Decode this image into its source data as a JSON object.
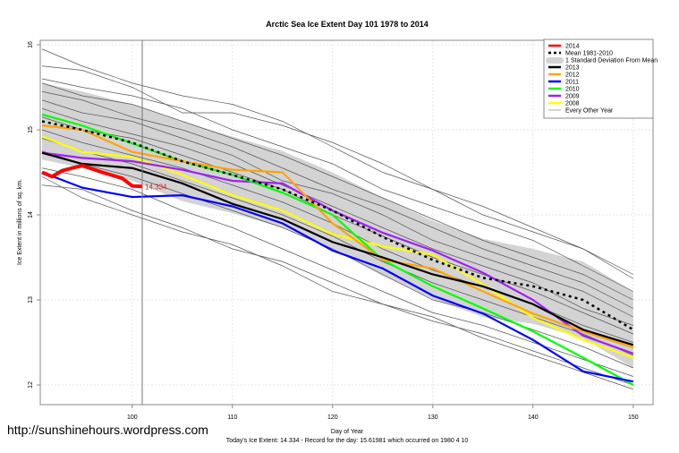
{
  "chart_data": {
    "type": "line",
    "title": "Arctic Sea Ice Extent Day 101 1978 to 2014",
    "xlabel": "Day of Year",
    "ylabel": "Ice Extent in millions of sq. km.",
    "xlim": [
      91,
      150
    ],
    "ylim": [
      11.9,
      16.05
    ],
    "xticks": [
      100,
      110,
      120,
      130,
      140,
      150
    ],
    "yticks": [
      12,
      13,
      14,
      15,
      16
    ],
    "grid": true,
    "legend_position": "top-right",
    "marker_day": 101,
    "today_label": "14.334",
    "footer": "Today's Ice Extent: 14.334  - Record for the day: 15.61981 which occurred on 1980 4 10",
    "x": [
      91,
      95,
      100,
      105,
      110,
      115,
      120,
      125,
      130,
      135,
      140,
      145,
      150
    ],
    "sd_band": {
      "name": "1 Standard Deviation From Mean",
      "color": "#d3d3d3",
      "upper": [
        15.55,
        15.45,
        15.3,
        15.1,
        14.92,
        14.75,
        14.5,
        14.2,
        13.93,
        13.72,
        13.6,
        13.45,
        13.1
      ],
      "lower": [
        14.65,
        14.55,
        14.4,
        14.16,
        14.02,
        13.85,
        13.6,
        13.28,
        13.01,
        12.8,
        12.72,
        12.55,
        12.2
      ]
    },
    "series": [
      {
        "name": "2014",
        "color": "#ff0000",
        "x": [
          91,
          92,
          93,
          95,
          97,
          99,
          100,
          101
        ],
        "values": [
          14.5,
          14.45,
          14.52,
          14.58,
          14.5,
          14.43,
          14.34,
          14.334
        ]
      },
      {
        "name": "Mean 1981-2010",
        "color": "#000000",
        "dashed": true,
        "values": [
          15.1,
          15.0,
          14.85,
          14.63,
          14.47,
          14.3,
          14.05,
          13.74,
          13.47,
          13.26,
          13.16,
          13.0,
          12.65
        ]
      },
      {
        "name": "2013",
        "color": "#000000",
        "values": [
          14.73,
          14.6,
          14.55,
          14.37,
          14.13,
          13.95,
          13.68,
          13.5,
          13.3,
          13.16,
          12.95,
          12.65,
          12.47
        ]
      },
      {
        "name": "2012",
        "color": "#ffa500",
        "values": [
          15.05,
          15.0,
          14.74,
          14.63,
          14.53,
          14.5,
          13.9,
          13.47,
          13.37,
          13.1,
          12.84,
          12.63,
          12.44
        ]
      },
      {
        "name": "2011",
        "color": "#0000ff",
        "values": [
          14.5,
          14.32,
          14.21,
          14.23,
          14.1,
          13.9,
          13.58,
          13.37,
          13.05,
          12.84,
          12.53,
          12.16,
          12.04
        ]
      },
      {
        "name": "2010",
        "color": "#00ff00",
        "values": [
          15.18,
          15.05,
          14.84,
          14.63,
          14.47,
          14.26,
          14.0,
          13.47,
          13.16,
          12.9,
          12.63,
          12.32,
          12.0
        ]
      },
      {
        "name": "2009",
        "color": "#a020f0",
        "values": [
          14.73,
          14.67,
          14.63,
          14.53,
          14.4,
          14.37,
          14.05,
          13.79,
          13.58,
          13.32,
          13.0,
          12.58,
          12.37
        ]
      },
      {
        "name": "2008",
        "color": "#ffff00",
        "values": [
          14.92,
          14.74,
          14.68,
          14.47,
          14.23,
          14.05,
          13.77,
          13.63,
          13.53,
          13.18,
          12.79,
          12.53,
          12.32
        ]
      }
    ],
    "other_years": {
      "name": "Every Other Year",
      "color": "#808080",
      "series": [
        [
          15.95,
          15.75,
          15.55,
          15.4,
          15.3,
          15.1,
          14.8,
          14.5,
          14.3,
          14.0,
          13.8,
          13.6,
          13.3
        ],
        [
          15.75,
          15.7,
          15.5,
          15.2,
          15.2,
          15.05,
          14.85,
          14.6,
          14.3,
          14.1,
          13.85,
          13.6,
          13.25
        ],
        [
          15.6,
          15.5,
          15.4,
          15.25,
          15.0,
          14.8,
          14.6,
          14.3,
          14.1,
          13.9,
          13.7,
          13.4,
          13.1
        ],
        [
          15.55,
          15.4,
          15.3,
          15.1,
          14.9,
          14.7,
          14.45,
          14.2,
          13.95,
          13.7,
          13.5,
          13.3,
          13.0
        ],
        [
          15.45,
          15.35,
          15.15,
          15.0,
          14.8,
          14.55,
          14.3,
          14.1,
          13.85,
          13.6,
          13.4,
          13.2,
          12.9
        ],
        [
          15.35,
          15.2,
          15.1,
          14.9,
          14.7,
          14.4,
          14.25,
          14.0,
          13.7,
          13.5,
          13.3,
          13.1,
          12.8
        ],
        [
          15.25,
          15.1,
          14.95,
          14.8,
          14.6,
          14.35,
          14.1,
          13.85,
          13.6,
          13.4,
          13.2,
          12.9,
          12.7
        ],
        [
          15.15,
          15.0,
          14.9,
          14.7,
          14.5,
          14.3,
          14.0,
          13.75,
          13.5,
          13.3,
          13.1,
          12.85,
          12.6
        ],
        [
          15.0,
          14.85,
          14.7,
          14.55,
          14.35,
          14.15,
          13.9,
          13.6,
          13.35,
          13.15,
          12.95,
          12.7,
          12.5
        ],
        [
          14.9,
          14.75,
          14.6,
          14.4,
          14.2,
          14.0,
          13.75,
          13.45,
          13.2,
          13.0,
          12.8,
          12.6,
          12.35
        ],
        [
          14.75,
          14.6,
          14.45,
          14.25,
          14.05,
          13.85,
          13.6,
          13.3,
          13.0,
          12.85,
          12.65,
          12.45,
          12.2
        ],
        [
          14.55,
          14.45,
          14.3,
          14.05,
          13.85,
          13.6,
          13.35,
          13.1,
          12.85,
          12.7,
          12.5,
          12.3,
          12.1
        ],
        [
          14.35,
          14.3,
          14.05,
          13.85,
          13.6,
          13.45,
          13.2,
          12.95,
          12.8,
          12.55,
          12.35,
          12.15,
          11.95
        ],
        [
          14.45,
          14.2,
          14.0,
          13.8,
          13.65,
          13.4,
          13.1,
          12.95,
          12.75,
          12.6,
          12.4,
          12.2,
          12.0
        ]
      ]
    }
  },
  "watermark": "http://sunshinehours.wordpress.com"
}
